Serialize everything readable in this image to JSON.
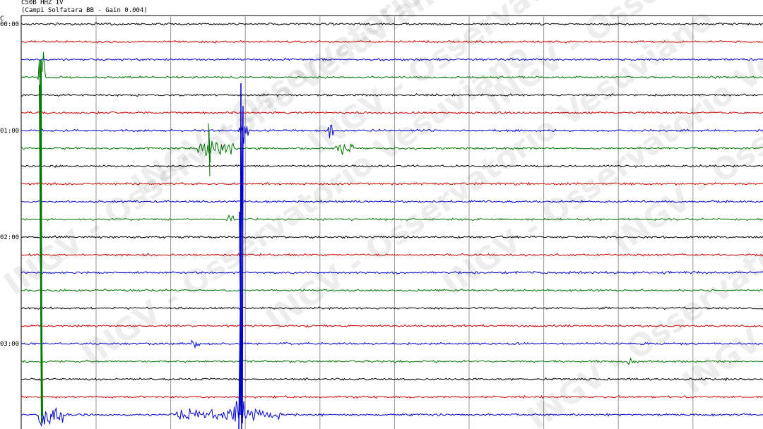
{
  "header": {
    "station": "C50B HHZ IV",
    "description": "(Campi Solfatara BB  - Gain 0.004)",
    "corner_label": "C"
  },
  "time_labels": [
    "00:00",
    "01:00",
    "02:00",
    "03:00"
  ],
  "watermark": "INGV - Osservatorio Vesuviano"
}
